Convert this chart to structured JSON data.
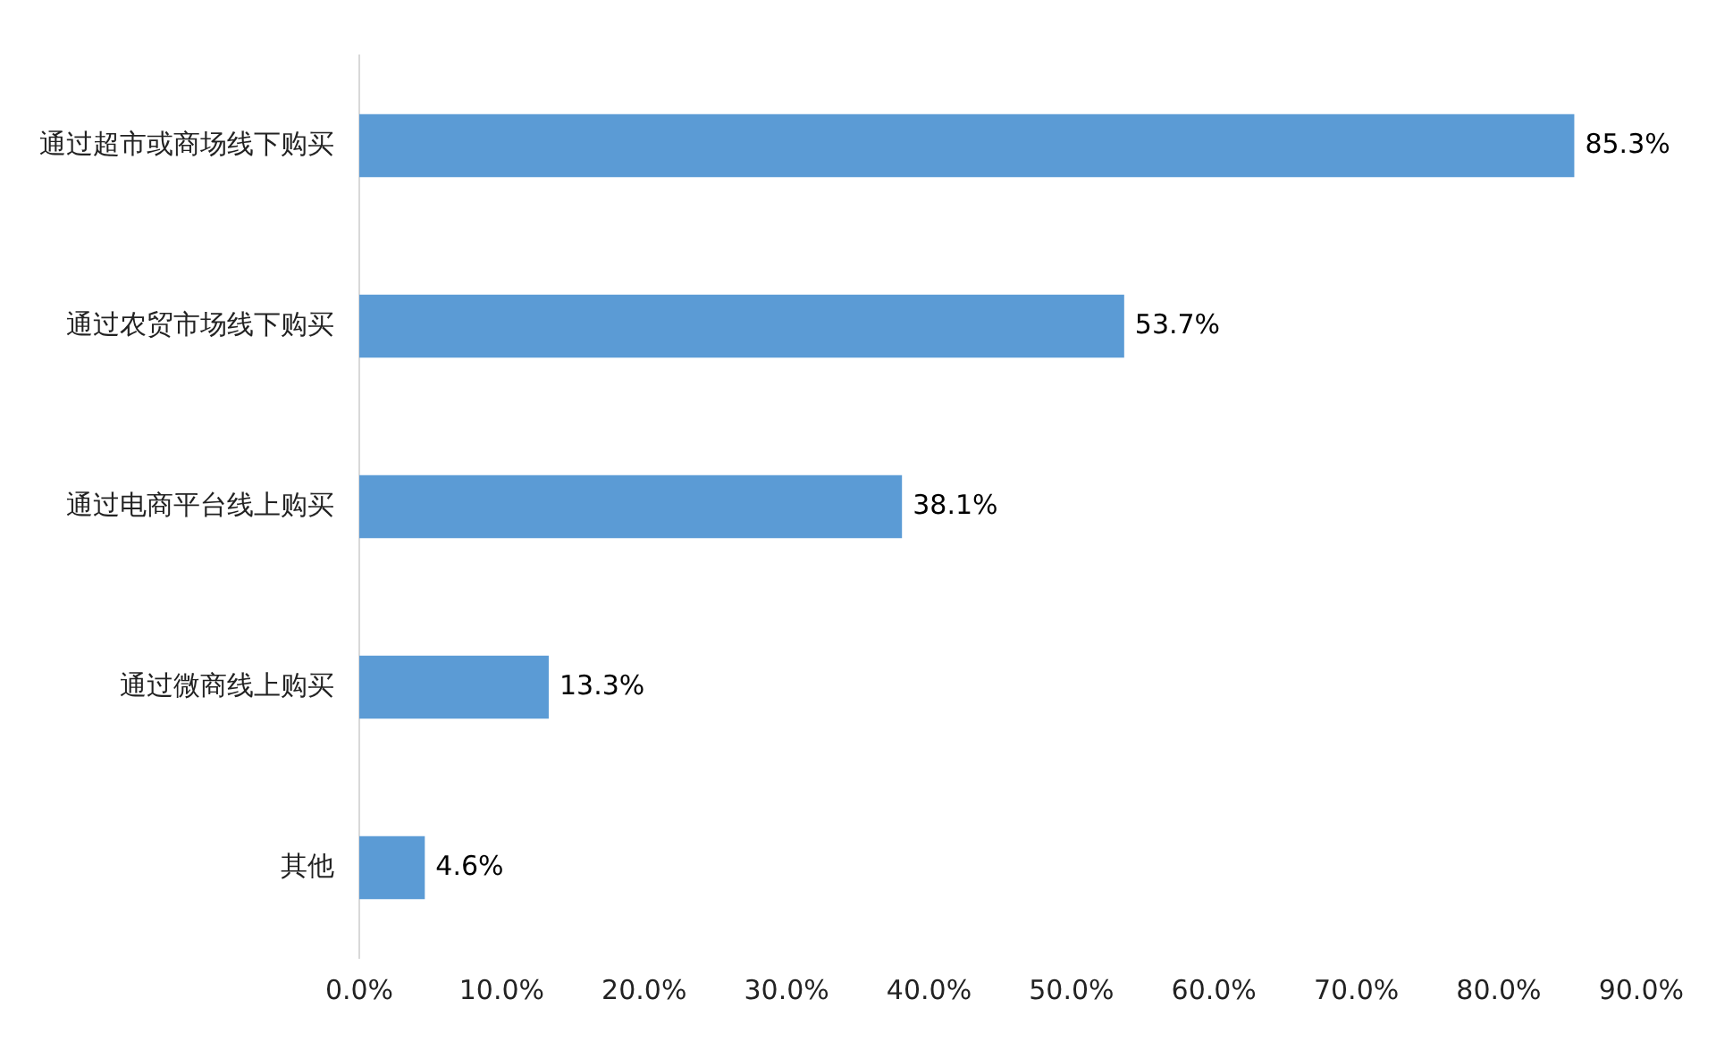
{
  "chart_data": {
    "type": "bar",
    "orientation": "horizontal",
    "categories": [
      "通过超市或商场线下购买",
      "通过农贸市场线下购买",
      "通过电商平台线上购买",
      "通过微商线上购买",
      "其他"
    ],
    "series": [
      {
        "color": "#5b9bd5",
        "values": [
          85.3,
          53.7,
          38.1,
          13.3,
          4.6
        ],
        "value_labels": [
          "85.3%",
          "53.7%",
          "38.1%",
          "13.3%",
          "4.6%"
        ]
      }
    ],
    "xlim": [
      0,
      90
    ],
    "xticks": [
      {
        "value": 0,
        "label": "0.0%"
      },
      {
        "value": 10,
        "label": "10.0%"
      },
      {
        "value": 20,
        "label": "20.0%"
      },
      {
        "value": 30,
        "label": "30.0%"
      },
      {
        "value": 40,
        "label": "40.0%"
      },
      {
        "value": 50,
        "label": "50.0%"
      },
      {
        "value": 60,
        "label": "60.0%"
      },
      {
        "value": 70,
        "label": "70.0%"
      },
      {
        "value": 80,
        "label": "80.0%"
      },
      {
        "value": 90,
        "label": "90.0%"
      }
    ],
    "grid": false,
    "legend": false
  }
}
